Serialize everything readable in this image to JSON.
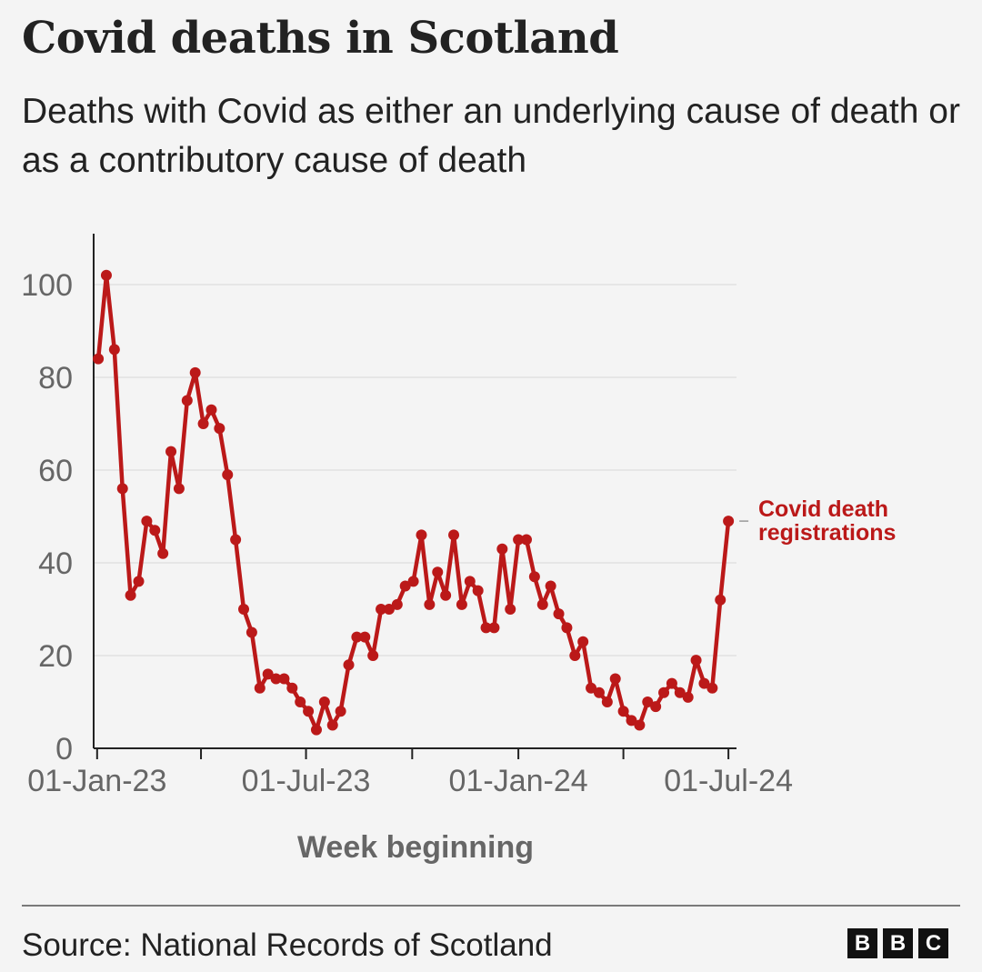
{
  "title": "Covid deaths in Scotland",
  "subtitle": "Deaths with Covid as either an underlying cause of death or as a contributory cause of death",
  "source": "Source: National Records of Scotland",
  "logo": {
    "letters": [
      "B",
      "B",
      "C"
    ]
  },
  "colors": {
    "series": "#bb1919",
    "axis": "#222222",
    "grid": "#e6e6e6",
    "tick_text": "#666666"
  },
  "chart_data": {
    "type": "line",
    "xlabel": "Week beginning",
    "ylabel": "",
    "ylim": [
      0,
      110
    ],
    "yticks": [
      0,
      20,
      40,
      60,
      80,
      100
    ],
    "ytick_labels": [
      "0",
      "20",
      "40",
      "60",
      "80",
      "100"
    ],
    "xlim": [
      "2022-12-29",
      "2024-07-08"
    ],
    "xticks": [
      "2023-01-01",
      "2023-04-01",
      "2023-07-01",
      "2023-10-01",
      "2024-01-01",
      "2024-04-01",
      "2024-07-01"
    ],
    "xtick_labels": [
      "01-Jan-23",
      "",
      "01-Jul-23",
      "",
      "01-Jan-24",
      "",
      "01-Jul-24"
    ],
    "grid": true,
    "series": [
      {
        "name": "Covid death registrations",
        "x": [
          "2023-01-02",
          "2023-01-09",
          "2023-01-16",
          "2023-01-23",
          "2023-01-30",
          "2023-02-06",
          "2023-02-13",
          "2023-02-20",
          "2023-02-27",
          "2023-03-06",
          "2023-03-13",
          "2023-03-20",
          "2023-03-27",
          "2023-04-03",
          "2023-04-10",
          "2023-04-17",
          "2023-04-24",
          "2023-05-01",
          "2023-05-08",
          "2023-05-15",
          "2023-05-22",
          "2023-05-29",
          "2023-06-05",
          "2023-06-12",
          "2023-06-19",
          "2023-06-26",
          "2023-07-03",
          "2023-07-10",
          "2023-07-17",
          "2023-07-24",
          "2023-07-31",
          "2023-08-07",
          "2023-08-14",
          "2023-08-21",
          "2023-08-28",
          "2023-09-04",
          "2023-09-11",
          "2023-09-18",
          "2023-09-25",
          "2023-10-02",
          "2023-10-09",
          "2023-10-16",
          "2023-10-23",
          "2023-10-30",
          "2023-11-06",
          "2023-11-13",
          "2023-11-20",
          "2023-11-27",
          "2023-12-04",
          "2023-12-11",
          "2023-12-18",
          "2023-12-25",
          "2024-01-01",
          "2024-01-08",
          "2024-01-15",
          "2024-01-22",
          "2024-01-29",
          "2024-02-05",
          "2024-02-12",
          "2024-02-19",
          "2024-02-26",
          "2024-03-04",
          "2024-03-11",
          "2024-03-18",
          "2024-03-25",
          "2024-04-01",
          "2024-04-08",
          "2024-04-15",
          "2024-04-22",
          "2024-04-29",
          "2024-05-06",
          "2024-05-13",
          "2024-05-20",
          "2024-05-27",
          "2024-06-03",
          "2024-06-10",
          "2024-06-17",
          "2024-06-24",
          "2024-07-01"
        ],
        "values": [
          84,
          102,
          86,
          56,
          33,
          36,
          49,
          47,
          42,
          64,
          56,
          75,
          81,
          70,
          73,
          69,
          59,
          45,
          30,
          25,
          13,
          16,
          15,
          15,
          13,
          10,
          8,
          4,
          10,
          5,
          8,
          18,
          24,
          24,
          20,
          30,
          30,
          31,
          35,
          36,
          46,
          31,
          38,
          33,
          46,
          31,
          36,
          34,
          26,
          26,
          43,
          30,
          45,
          45,
          37,
          31,
          35,
          29,
          26,
          20,
          23,
          13,
          12,
          10,
          15,
          8,
          6,
          5,
          10,
          9,
          12,
          14,
          12,
          11,
          19,
          14,
          13,
          32,
          49
        ]
      }
    ],
    "annotations": [
      "Covid death",
      "registrations"
    ]
  }
}
